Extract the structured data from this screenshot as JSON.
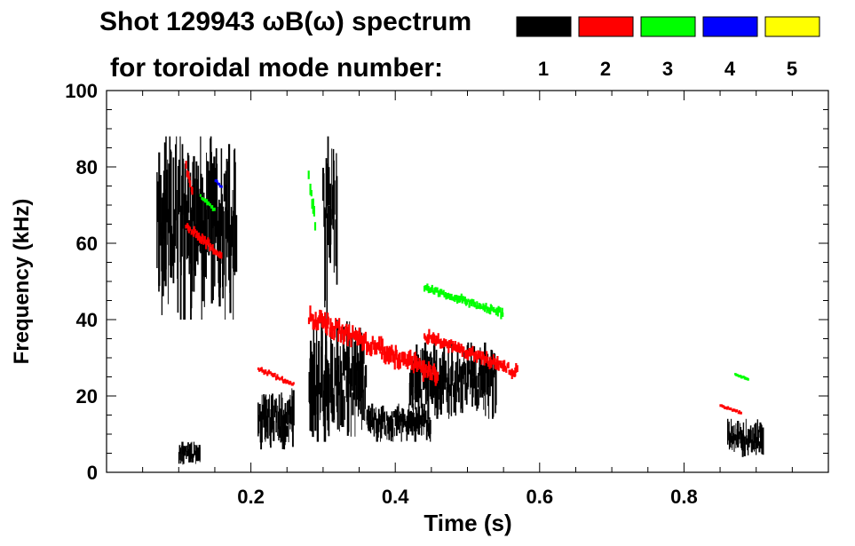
{
  "chart_data": {
    "type": "heatmap",
    "title_line1": "Shot 129943 ωB(ω) spectrum",
    "title_line2": "for toroidal mode number:",
    "xlabel": "Time (s)",
    "ylabel": "Frequency (kHz)",
    "xlim": [
      0.0,
      1.0
    ],
    "ylim": [
      0,
      100
    ],
    "x_ticks": [
      0.2,
      0.4,
      0.6,
      0.8
    ],
    "x_tick_labels": [
      "0.2",
      "0.4",
      "0.6",
      "0.8"
    ],
    "y_ticks": [
      0,
      20,
      40,
      60,
      80,
      100
    ],
    "y_tick_labels": [
      "0",
      "20",
      "40",
      "60",
      "80",
      "100"
    ],
    "legend": [
      {
        "label": "1",
        "color": "#000000"
      },
      {
        "label": "2",
        "color": "#ff0000"
      },
      {
        "label": "3",
        "color": "#00ff00"
      },
      {
        "label": "4",
        "color": "#0000ff"
      },
      {
        "label": "5",
        "color": "#ffff00"
      }
    ],
    "modes": [
      {
        "n": 1,
        "color": "#000000",
        "segments": [
          {
            "t": [
              0.07,
              0.18
            ],
            "f": [
              40,
              88
            ]
          },
          {
            "t": [
              0.1,
              0.13
            ],
            "f": [
              2,
              8
            ]
          },
          {
            "t": [
              0.21,
              0.26
            ],
            "f": [
              6,
              22
            ]
          },
          {
            "t": [
              0.28,
              0.36
            ],
            "f": [
              8,
              40
            ]
          },
          {
            "t": [
              0.3,
              0.32
            ],
            "f": [
              40,
              88
            ]
          },
          {
            "t": [
              0.36,
              0.45
            ],
            "f": [
              8,
              18
            ]
          },
          {
            "t": [
              0.42,
              0.54
            ],
            "f": [
              14,
              34
            ]
          },
          {
            "t": [
              0.86,
              0.91
            ],
            "f": [
              4,
              14
            ]
          }
        ]
      },
      {
        "n": 2,
        "color": "#ff0000",
        "segments": [
          {
            "t": [
              0.11,
              0.16
            ],
            "f": [
              55,
              66
            ]
          },
          {
            "t": [
              0.11,
              0.12
            ],
            "f": [
              70,
              82
            ]
          },
          {
            "t": [
              0.21,
              0.26
            ],
            "f": [
              22,
              28
            ]
          },
          {
            "t": [
              0.28,
              0.46
            ],
            "f": [
              22,
              44
            ]
          },
          {
            "t": [
              0.44,
              0.57
            ],
            "f": [
              24,
              38
            ]
          },
          {
            "t": [
              0.85,
              0.88
            ],
            "f": [
              15,
              18
            ]
          }
        ]
      },
      {
        "n": 3,
        "color": "#00ff00",
        "segments": [
          {
            "t": [
              0.13,
              0.15
            ],
            "f": [
              68,
              73
            ]
          },
          {
            "t": [
              0.28,
              0.29
            ],
            "f": [
              60,
              80
            ]
          },
          {
            "t": [
              0.44,
              0.55
            ],
            "f": [
              40,
              50
            ]
          },
          {
            "t": [
              0.87,
              0.89
            ],
            "f": [
              24,
              26
            ]
          }
        ]
      },
      {
        "n": 4,
        "color": "#0000ff",
        "segments": [
          {
            "t": [
              0.15,
              0.16
            ],
            "f": [
              74,
              77
            ]
          }
        ]
      },
      {
        "n": 5,
        "color": "#ffff00",
        "segments": []
      }
    ]
  }
}
